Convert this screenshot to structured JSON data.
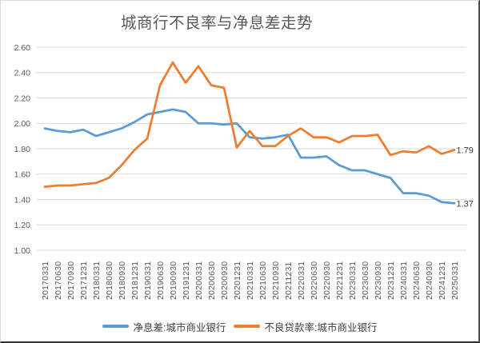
{
  "title": "城商行不良率与净息差走势",
  "colors": {
    "nim_line": "#5B9BD5",
    "npl_line": "#ED7D31",
    "gridline": "#D9D9D9",
    "axis_text": "#595959",
    "title_text": "#595959",
    "data_label_text": "#404040",
    "legend_text": "#404040"
  },
  "chart_data": {
    "type": "line",
    "title": "城商行不良率与净息差走势",
    "categories": [
      "20170331",
      "20170630",
      "20170930",
      "20171231",
      "20180331",
      "20180630",
      "20180930",
      "20181231",
      "20190331",
      "20190630",
      "20190930",
      "20191231",
      "20200331",
      "20200630",
      "20200930",
      "20201231",
      "20210331",
      "20210630",
      "20210930",
      "20211231",
      "20220331",
      "20220630",
      "20220930",
      "20221231",
      "20230331",
      "20230630",
      "20230930",
      "20231231",
      "20240331",
      "20240630",
      "20240930",
      "20241231",
      "20250331"
    ],
    "series": [
      {
        "name": "净息差:城市商业银行",
        "color": "#5B9BD5",
        "values": [
          1.96,
          1.94,
          1.93,
          1.95,
          1.9,
          1.93,
          1.96,
          2.01,
          2.07,
          2.09,
          2.11,
          2.09,
          2.0,
          2.0,
          1.99,
          2.0,
          1.89,
          1.88,
          1.89,
          1.91,
          1.73,
          1.73,
          1.74,
          1.67,
          1.63,
          1.63,
          1.6,
          1.57,
          1.45,
          1.45,
          1.43,
          1.38,
          1.37
        ],
        "end_label": "1.37"
      },
      {
        "name": "不良贷款率:城市商业银行",
        "color": "#ED7D31",
        "values": [
          1.5,
          1.51,
          1.51,
          1.52,
          1.53,
          1.57,
          1.67,
          1.79,
          1.88,
          2.3,
          2.48,
          2.32,
          2.45,
          2.3,
          2.28,
          1.81,
          1.94,
          1.82,
          1.82,
          1.9,
          1.96,
          1.89,
          1.89,
          1.85,
          1.9,
          1.9,
          1.91,
          1.75,
          1.78,
          1.77,
          1.82,
          1.76,
          1.79
        ],
        "end_label": "1.79"
      }
    ],
    "ylim": [
      1.0,
      2.6
    ],
    "ytick_step": 0.2,
    "ytick_labels": [
      "1.00",
      "1.20",
      "1.40",
      "1.60",
      "1.80",
      "2.00",
      "2.20",
      "2.40",
      "2.60"
    ],
    "xlabel": "",
    "ylabel": "",
    "grid": true,
    "legend_position": "bottom",
    "x_tick_rotation": -90
  }
}
